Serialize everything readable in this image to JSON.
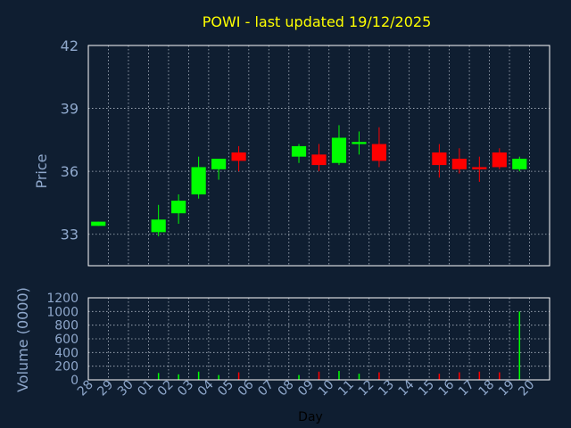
{
  "chart_data": [
    {
      "type": "candlestick",
      "title": "POWI - last updated 19/12/2025",
      "ylabel": "Price",
      "ylim": [
        31.5,
        42
      ],
      "yticks": [
        33,
        36,
        39,
        42
      ],
      "grid": true,
      "colors": {
        "up": "#00ff00",
        "down": "#ff0000",
        "background": "#0f1e31",
        "axis_text": "#8fa8cc",
        "title": "#ffff00"
      },
      "x": [
        "28",
        "29",
        "30",
        "01",
        "02",
        "03",
        "04",
        "05",
        "06",
        "07",
        "08",
        "09",
        "10",
        "11",
        "12",
        "13",
        "14",
        "15",
        "16",
        "17",
        "18",
        "19",
        "20"
      ],
      "candles": [
        {
          "day": "28",
          "open": 33.4,
          "high": 33.6,
          "low": 33.4,
          "close": 33.6
        },
        {
          "day": "01",
          "open": 33.1,
          "high": 34.4,
          "low": 32.9,
          "close": 33.7
        },
        {
          "day": "02",
          "open": 34.0,
          "high": 34.9,
          "low": 33.5,
          "close": 34.6
        },
        {
          "day": "03",
          "open": 34.9,
          "high": 36.7,
          "low": 34.7,
          "close": 36.2
        },
        {
          "day": "04",
          "open": 36.1,
          "high": 36.6,
          "low": 35.6,
          "close": 36.6
        },
        {
          "day": "05",
          "open": 36.9,
          "high": 37.2,
          "low": 36.0,
          "close": 36.5
        },
        {
          "day": "08",
          "open": 36.7,
          "high": 37.3,
          "low": 36.4,
          "close": 37.2
        },
        {
          "day": "09",
          "open": 36.8,
          "high": 37.3,
          "low": 36.0,
          "close": 36.3
        },
        {
          "day": "10",
          "open": 36.4,
          "high": 38.2,
          "low": 36.3,
          "close": 37.6
        },
        {
          "day": "11",
          "open": 37.3,
          "high": 37.9,
          "low": 36.8,
          "close": 37.4
        },
        {
          "day": "12",
          "open": 37.3,
          "high": 38.1,
          "low": 36.2,
          "close": 36.5
        },
        {
          "day": "15",
          "open": 36.9,
          "high": 37.3,
          "low": 35.7,
          "close": 36.3
        },
        {
          "day": "16",
          "open": 36.6,
          "high": 37.1,
          "low": 35.9,
          "close": 36.1
        },
        {
          "day": "17",
          "open": 36.2,
          "high": 36.7,
          "low": 35.5,
          "close": 36.1
        },
        {
          "day": "18",
          "open": 36.9,
          "high": 37.1,
          "low": 36.1,
          "close": 36.2
        },
        {
          "day": "19",
          "open": 36.1,
          "high": 36.7,
          "low": 36.0,
          "close": 36.6
        }
      ]
    },
    {
      "type": "bar",
      "xlabel": "Day",
      "ylabel": "Volume (0000)",
      "ylim": [
        0,
        1200
      ],
      "yticks": [
        0,
        200,
        400,
        600,
        800,
        1000,
        1200
      ],
      "grid": true,
      "categories": [
        "28",
        "29",
        "30",
        "01",
        "02",
        "03",
        "04",
        "05",
        "06",
        "07",
        "08",
        "09",
        "10",
        "11",
        "12",
        "13",
        "14",
        "15",
        "16",
        "17",
        "18",
        "19",
        "20"
      ],
      "bars": [
        {
          "day": "28",
          "value": 5,
          "dir": "up"
        },
        {
          "day": "01",
          "value": 100,
          "dir": "up"
        },
        {
          "day": "02",
          "value": 80,
          "dir": "up"
        },
        {
          "day": "03",
          "value": 120,
          "dir": "up"
        },
        {
          "day": "04",
          "value": 70,
          "dir": "up"
        },
        {
          "day": "05",
          "value": 110,
          "dir": "down"
        },
        {
          "day": "08",
          "value": 70,
          "dir": "up"
        },
        {
          "day": "09",
          "value": 120,
          "dir": "down"
        },
        {
          "day": "10",
          "value": 130,
          "dir": "up"
        },
        {
          "day": "11",
          "value": 90,
          "dir": "up"
        },
        {
          "day": "12",
          "value": 110,
          "dir": "down"
        },
        {
          "day": "15",
          "value": 90,
          "dir": "down"
        },
        {
          "day": "16",
          "value": 110,
          "dir": "down"
        },
        {
          "day": "17",
          "value": 120,
          "dir": "down"
        },
        {
          "day": "18",
          "value": 110,
          "dir": "down"
        },
        {
          "day": "19",
          "value": 1000,
          "dir": "up"
        }
      ]
    }
  ]
}
